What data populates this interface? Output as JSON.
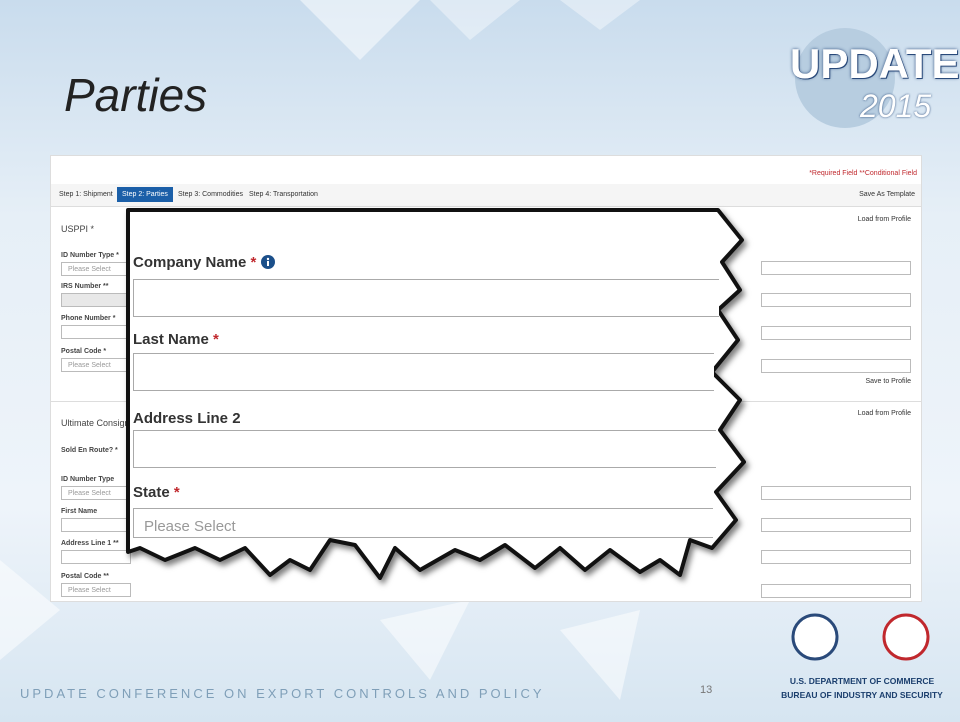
{
  "slide": {
    "title": "Parties",
    "page_number": "13",
    "footer": "UPDATE CONFERENCE ON EXPORT CONTROLS  AND POLICY"
  },
  "logo": {
    "word": "UPDATE",
    "year": "2015"
  },
  "agency": {
    "line1": "U.S. DEPARTMENT OF COMMERCE",
    "line2": "BUREAU OF INDUSTRY AND SECURITY"
  },
  "form": {
    "legend_required": "*Required Field",
    "legend_conditional": "**Conditional Field",
    "steps": [
      "Step 1: Shipment",
      "Step 2: Parties",
      "Step 3: Commodities",
      "Step 4: Transportation"
    ],
    "save_template": "Save As Template",
    "usppi": {
      "heading": "USPPI *",
      "load": "Load from Profile",
      "save": "Save to Profile",
      "fields": [
        {
          "label": "ID Number Type *",
          "value": "Please Select"
        },
        {
          "label": "IRS Number **"
        },
        {
          "label": "Phone Number *"
        },
        {
          "label": "Postal Code *",
          "value": "Please Select"
        }
      ]
    },
    "consignee": {
      "heading": "Ultimate Consignee",
      "load": "Load from Profile",
      "sold": "Sold En Route? *",
      "fields": [
        {
          "label": "ID Number Type",
          "value": "Please Select"
        },
        {
          "label": "First Name"
        },
        {
          "label": "Address Line 1 **"
        },
        {
          "label": "Postal Code **",
          "value": "Please Select"
        }
      ]
    }
  },
  "zoom": {
    "fields": [
      {
        "label": "Company Name",
        "marker": "*"
      },
      {
        "label": "Last Name",
        "marker": "*"
      },
      {
        "label": "Address Line 2"
      },
      {
        "label": "State",
        "marker": "*",
        "value": "Please Select"
      }
    ]
  }
}
